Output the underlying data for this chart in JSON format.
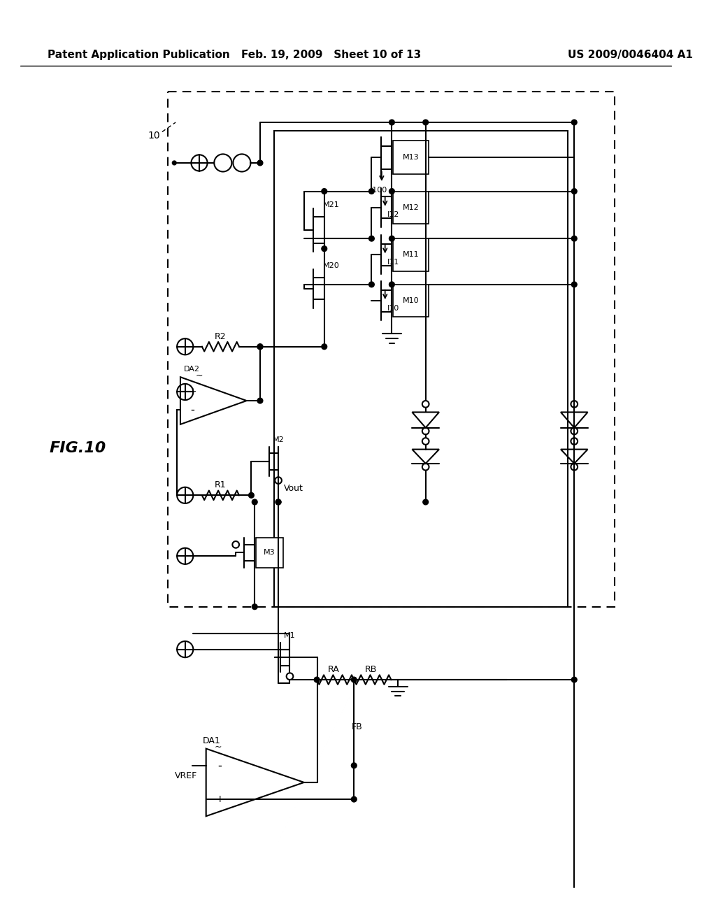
{
  "header_left": "Patent Application Publication",
  "header_center": "Feb. 19, 2009   Sheet 10 of 13",
  "header_right": "US 2009/0046404 A1",
  "fig_label": "FIG.10",
  "bg_color": "#ffffff"
}
